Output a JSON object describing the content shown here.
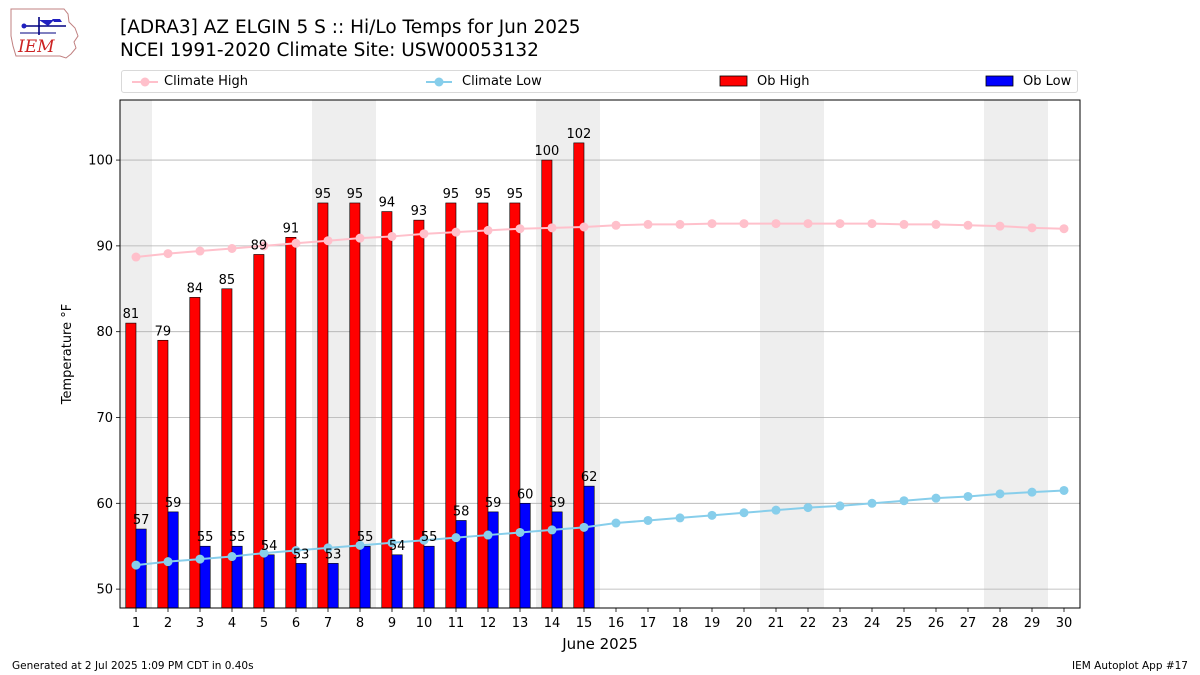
{
  "header": {
    "title_line1": "[ADRA3] AZ ELGIN 5 S :: Hi/Lo Temps for Jun 2025",
    "title_line2": "NCEI 1991-2020 Climate Site: USW00053132",
    "logo_text": "IEM"
  },
  "legend": {
    "position": "top, full width",
    "items": [
      {
        "label": "Climate High",
        "color": "#ffc0cb",
        "marker": "line-dot"
      },
      {
        "label": "Climate Low",
        "color": "#87ceeb",
        "marker": "line-dot"
      },
      {
        "label": "Ob High",
        "color": "#ff0000",
        "marker": "box"
      },
      {
        "label": "Ob Low",
        "color": "#0000ff",
        "marker": "box"
      }
    ]
  },
  "footer": {
    "generated": "Generated at 2 Jul 2025 1:09 PM CDT in 0.40s",
    "app": "IEM Autoplot App #17"
  },
  "chart_data": {
    "type": "bar",
    "title": "[ADRA3] AZ ELGIN 5 S :: Hi/Lo Temps for Jun 2025",
    "subtitle": "NCEI 1991-2020 Climate Site: USW00053132",
    "xlabel": "June 2025",
    "ylabel": "Temperature °F",
    "ylim": [
      47.8,
      107.0
    ],
    "xlim": [
      0.5,
      30.5
    ],
    "yticks": [
      50,
      60,
      70,
      80,
      90,
      100
    ],
    "grid": "horizontal",
    "legend_position": "top",
    "categories": [
      "1",
      "2",
      "3",
      "4",
      "5",
      "6",
      "7",
      "8",
      "9",
      "10",
      "11",
      "12",
      "13",
      "14",
      "15",
      "16",
      "17",
      "18",
      "19",
      "20",
      "21",
      "22",
      "23",
      "24",
      "25",
      "26",
      "27",
      "28",
      "29",
      "30"
    ],
    "weekend_shading": [
      [
        1,
        1
      ],
      [
        7,
        8
      ],
      [
        14,
        15
      ],
      [
        21,
        22
      ],
      [
        28,
        29
      ]
    ],
    "series": [
      {
        "name": "Ob High",
        "kind": "bar",
        "color": "#ff0000",
        "values": [
          81,
          79,
          84,
          85,
          89,
          91,
          95,
          95,
          94,
          93,
          95,
          95,
          95,
          100,
          102,
          null,
          null,
          null,
          null,
          null,
          null,
          null,
          null,
          null,
          null,
          null,
          null,
          null,
          null,
          null
        ]
      },
      {
        "name": "Ob Low",
        "kind": "bar",
        "color": "#0000ff",
        "values": [
          57,
          59,
          55,
          55,
          54,
          53,
          53,
          55,
          54,
          55,
          58,
          59,
          60,
          59,
          62,
          null,
          null,
          null,
          null,
          null,
          null,
          null,
          null,
          null,
          null,
          null,
          null,
          null,
          null,
          null
        ]
      },
      {
        "name": "Climate High",
        "kind": "line",
        "color": "#ffc0cb",
        "values": [
          88.7,
          89.1,
          89.4,
          89.7,
          90.0,
          90.3,
          90.6,
          90.9,
          91.1,
          91.4,
          91.6,
          91.8,
          92.0,
          92.1,
          92.2,
          92.4,
          92.5,
          92.5,
          92.6,
          92.6,
          92.6,
          92.6,
          92.6,
          92.6,
          92.5,
          92.5,
          92.4,
          92.3,
          92.1,
          92.0
        ]
      },
      {
        "name": "Climate Low",
        "kind": "line",
        "color": "#87ceeb",
        "values": [
          52.8,
          53.2,
          53.5,
          53.8,
          54.2,
          54.5,
          54.8,
          55.1,
          55.4,
          55.7,
          56.0,
          56.3,
          56.6,
          56.9,
          57.2,
          57.7,
          58.0,
          58.3,
          58.6,
          58.9,
          59.2,
          59.5,
          59.7,
          60.0,
          60.3,
          60.6,
          60.8,
          61.1,
          61.3,
          61.5
        ]
      }
    ]
  }
}
